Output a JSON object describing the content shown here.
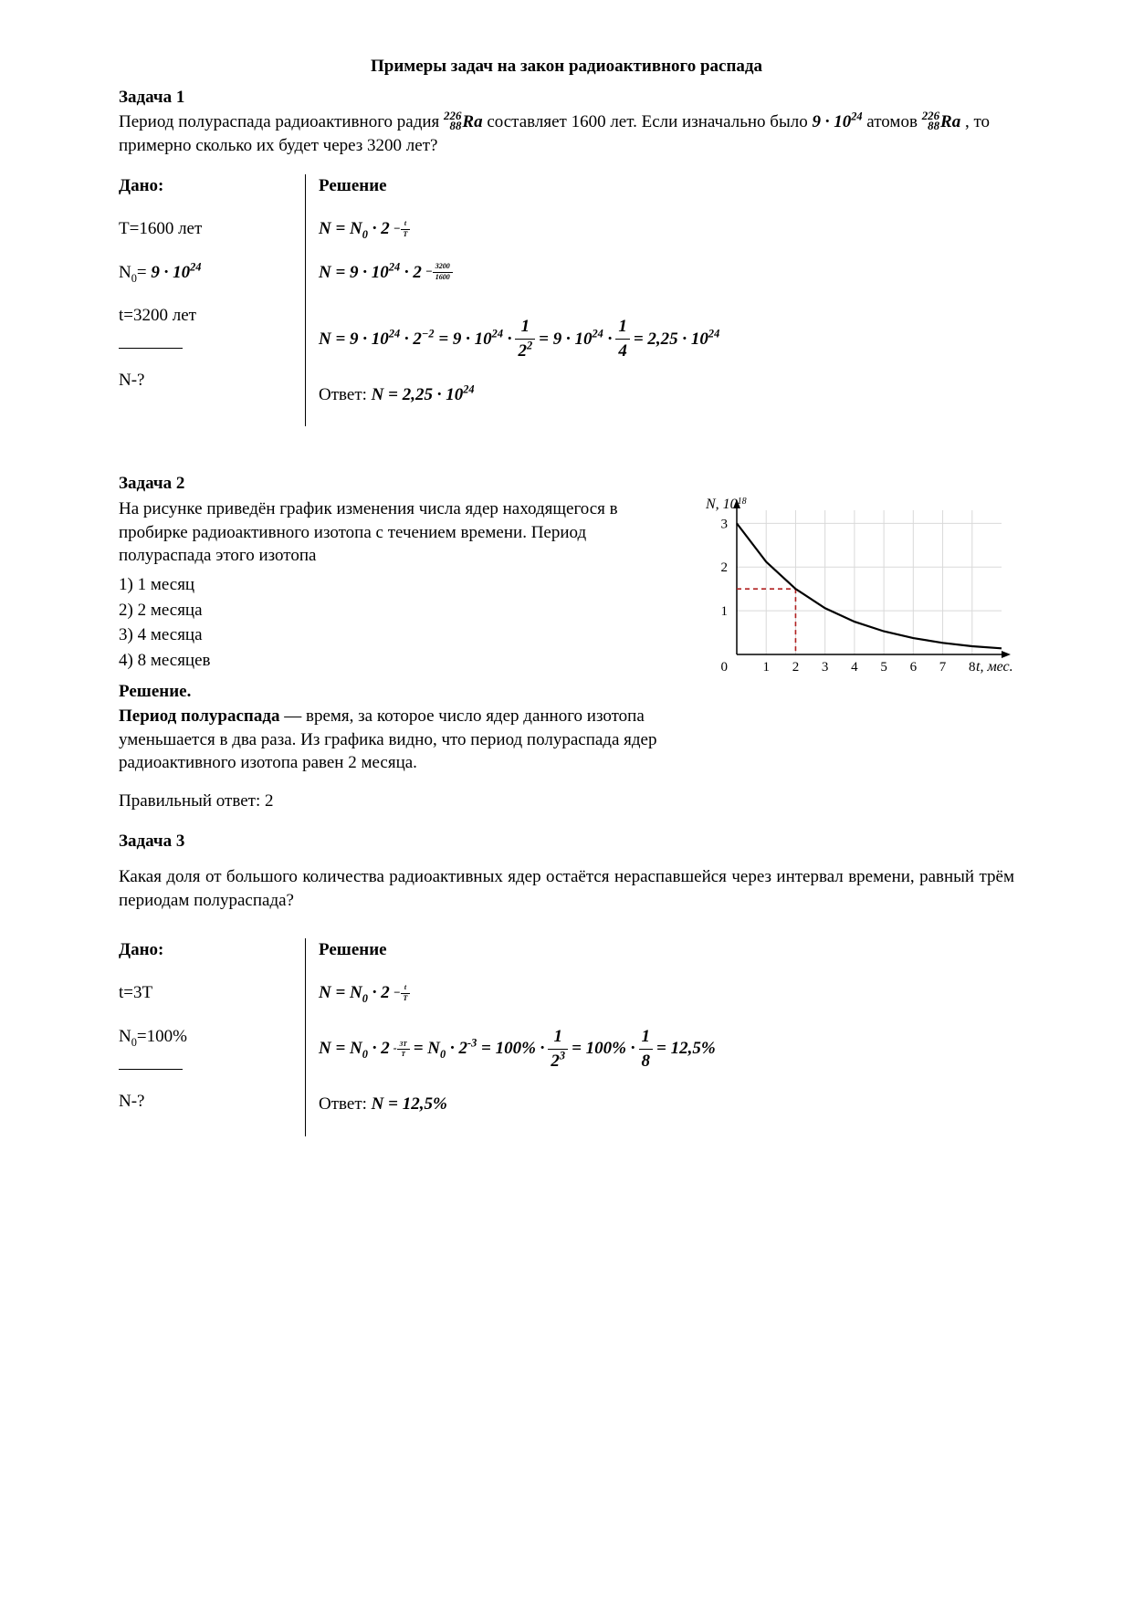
{
  "title": "Примеры задач на закон радиоактивного распада",
  "p1": {
    "heading": "Задача 1",
    "text_a": "Период полураспада радиоактивного радия ",
    "nuc_a": "226",
    "nuc_z": "88",
    "nuc_sym": "Ra",
    "text_b": " составляет 1600 лет. Если изначально было ",
    "n0": "9 · 10",
    "n0_pow": "24",
    "text_c": " атомов ",
    "text_d": ", то примерно сколько их будет через 3200 лет?",
    "given_hdr": "Дано:",
    "sol_hdr": "Решение",
    "given1": "T=1600 лет",
    "given2_a": "N",
    "given2_sub": "0",
    "given2_b": "= ",
    "given2_val": "9 · 10",
    "given2_pow": "24",
    "given3": "t=3200 лет",
    "find": "N-?",
    "eq1_lhs": "N = N",
    "eq1_sub": "0",
    "eq1_mid": " · 2",
    "eq2": "N = 9 · 10",
    "eq2_pow": "24",
    "eq2_mid": " · 2",
    "eq2_exp_num": "3200",
    "eq2_exp_den": "1600",
    "eq3_a": "N = 9 · 10",
    "eq3_pow": "24",
    "eq3_b": " · 2",
    "eq3_m2": "−2",
    "eq3_c": " = 9 · 10",
    "eq3_d": " · ",
    "eq3_f1n": "1",
    "eq3_f1d": "2",
    "eq3_f1dp": "2",
    "eq3_e": " = 9 · 10",
    "eq3_f": " · ",
    "eq3_f2n": "1",
    "eq3_f2d": "4",
    "eq3_g": " = 2,25 · 10",
    "ans_label": "Ответ: ",
    "ans_val": "N = 2,25 · 10",
    "ans_pow": "24"
  },
  "p2": {
    "heading": "Задача 2",
    "text1": "На рисунке приведён график изменения числа ядер находящегося в пробирке радиоактивного изотопа с течением времени. Период полураспада этого изотопа",
    "opt1": "1) 1 месяц",
    "opt2": "2) 2 месяца",
    "opt3": "3) 4 месяца",
    "opt4": "4) 8 месяцев",
    "sol_hdr": "Решение.",
    "sol_a": "Период полураспада",
    "sol_b": " — время, за которое число ядер данного изотопа уменьшается в два раза. Из графика видно, что период полураспада ядер радиоактивного изотопа равен 2 месяца.",
    "ans": "Правильный ответ: 2",
    "chart": {
      "type": "line-decay",
      "x_label": "t, мес.",
      "y_label": "N, 10",
      "y_label_pow": "18",
      "x_ticks": [
        1,
        2,
        3,
        4,
        5,
        6,
        7,
        8
      ],
      "y_ticks": [
        1,
        2,
        3
      ],
      "xlim": [
        0,
        9
      ],
      "ylim": [
        0,
        3.3
      ],
      "background_color": "#ffffff",
      "grid_color": "#d9d9d9",
      "axis_color": "#000000",
      "curve_color": "#000000",
      "marker_line_color": "#b02020",
      "marker_x": 2,
      "marker_y": 1.5,
      "curve_points": [
        [
          0,
          3
        ],
        [
          1,
          2.12
        ],
        [
          2,
          1.5
        ],
        [
          3,
          1.06
        ],
        [
          4,
          0.75
        ],
        [
          5,
          0.53
        ],
        [
          6,
          0.375
        ],
        [
          7,
          0.265
        ],
        [
          8,
          0.1875
        ],
        [
          9,
          0.14
        ]
      ],
      "tick_fontsize": 15,
      "label_fontsize": 16,
      "line_width": 2.2
    }
  },
  "p3": {
    "heading": "Задача 3",
    "text": "Какая доля от большого количества радиоактивных ядер остаётся нераспавшейся через интервал времени, равный трём периодам полураспада?",
    "given_hdr": "Дано:",
    "sol_hdr": "Решение",
    "given1": "t=3T",
    "given2_a": "N",
    "given2_sub": "0",
    "given2_b": "=100%",
    "find": "N-?",
    "eq1_lhs": "N = N",
    "eq1_sub": "0",
    "eq1_mid": " · 2",
    "eq2_a": "N = N",
    "eq2_sub": "0",
    "eq2_b": " · 2",
    "eq2_exp_num": "3T",
    "eq2_exp_den": "T",
    "eq2_c": " = N",
    "eq2_sub2": "0",
    "eq2_d": " · 2",
    "eq2_m3": "-3",
    "eq2_e": " = 100% · ",
    "eq2_f1n": "1",
    "eq2_f1d": "2",
    "eq2_f1dp": "3",
    "eq2_f": " = 100% · ",
    "eq2_f2n": "1",
    "eq2_f2d": "8",
    "eq2_g": " = 12,5%",
    "ans_label": "Ответ: ",
    "ans_val": "N = 12,5%"
  }
}
